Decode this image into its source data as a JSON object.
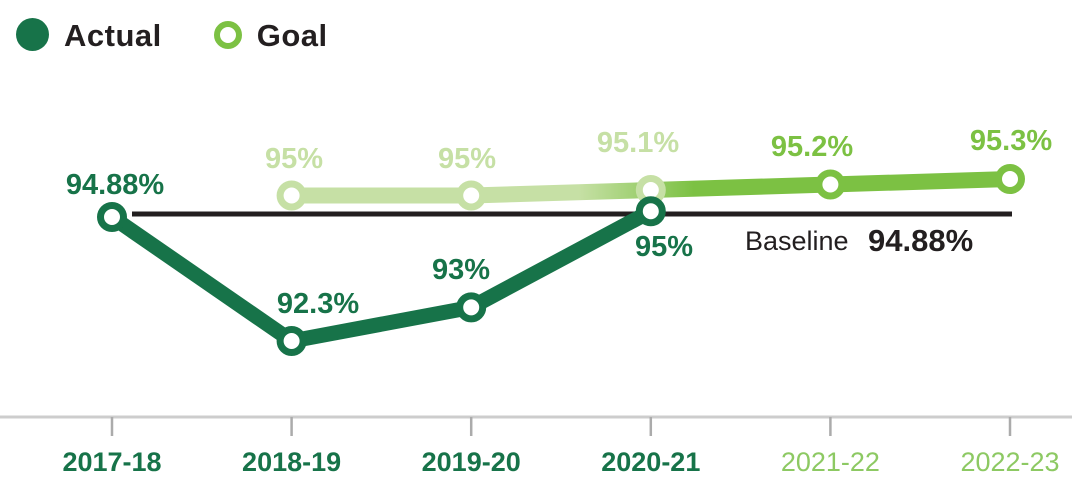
{
  "legend": {
    "actual_label": "Actual",
    "goal_label": "Goal"
  },
  "baseline": {
    "label": "Baseline",
    "value_label": "94.88%",
    "value": 94.88
  },
  "colors": {
    "dark_green": "#177349",
    "pale_green": "#c6e0a5",
    "bright_green": "#7cc143",
    "future_year_green": "#8dc963",
    "text_dark": "#231f20",
    "axis_gray": "#cdcdcd",
    "tick_gray": "#ababab",
    "marker_fill": "#ffffff",
    "baseline_black": "#231f20"
  },
  "chart_data": {
    "type": "line",
    "categories": [
      "2017-18",
      "2018-19",
      "2019-20",
      "2020-21",
      "2021-22",
      "2022-23"
    ],
    "future_start_index": 4,
    "series": [
      {
        "name": "Actual",
        "values": [
          94.88,
          92.3,
          93,
          95,
          null,
          null
        ],
        "labels": [
          "94.88%",
          "92.3%",
          "93%",
          "95%",
          "",
          ""
        ]
      },
      {
        "name": "Goal",
        "values": [
          null,
          95,
          95,
          95.1,
          95.2,
          95.3
        ],
        "labels": [
          "",
          "95%",
          "95%",
          "95.1%",
          "95.2%",
          "95.3%"
        ]
      }
    ],
    "baseline_value": 94.88,
    "baseline_label": "Baseline 94.88%",
    "title": "",
    "xlabel": "",
    "ylabel": "",
    "grid": false,
    "legend_position": "top-left",
    "y_value_range_shown": [
      92.3,
      95.3
    ]
  }
}
